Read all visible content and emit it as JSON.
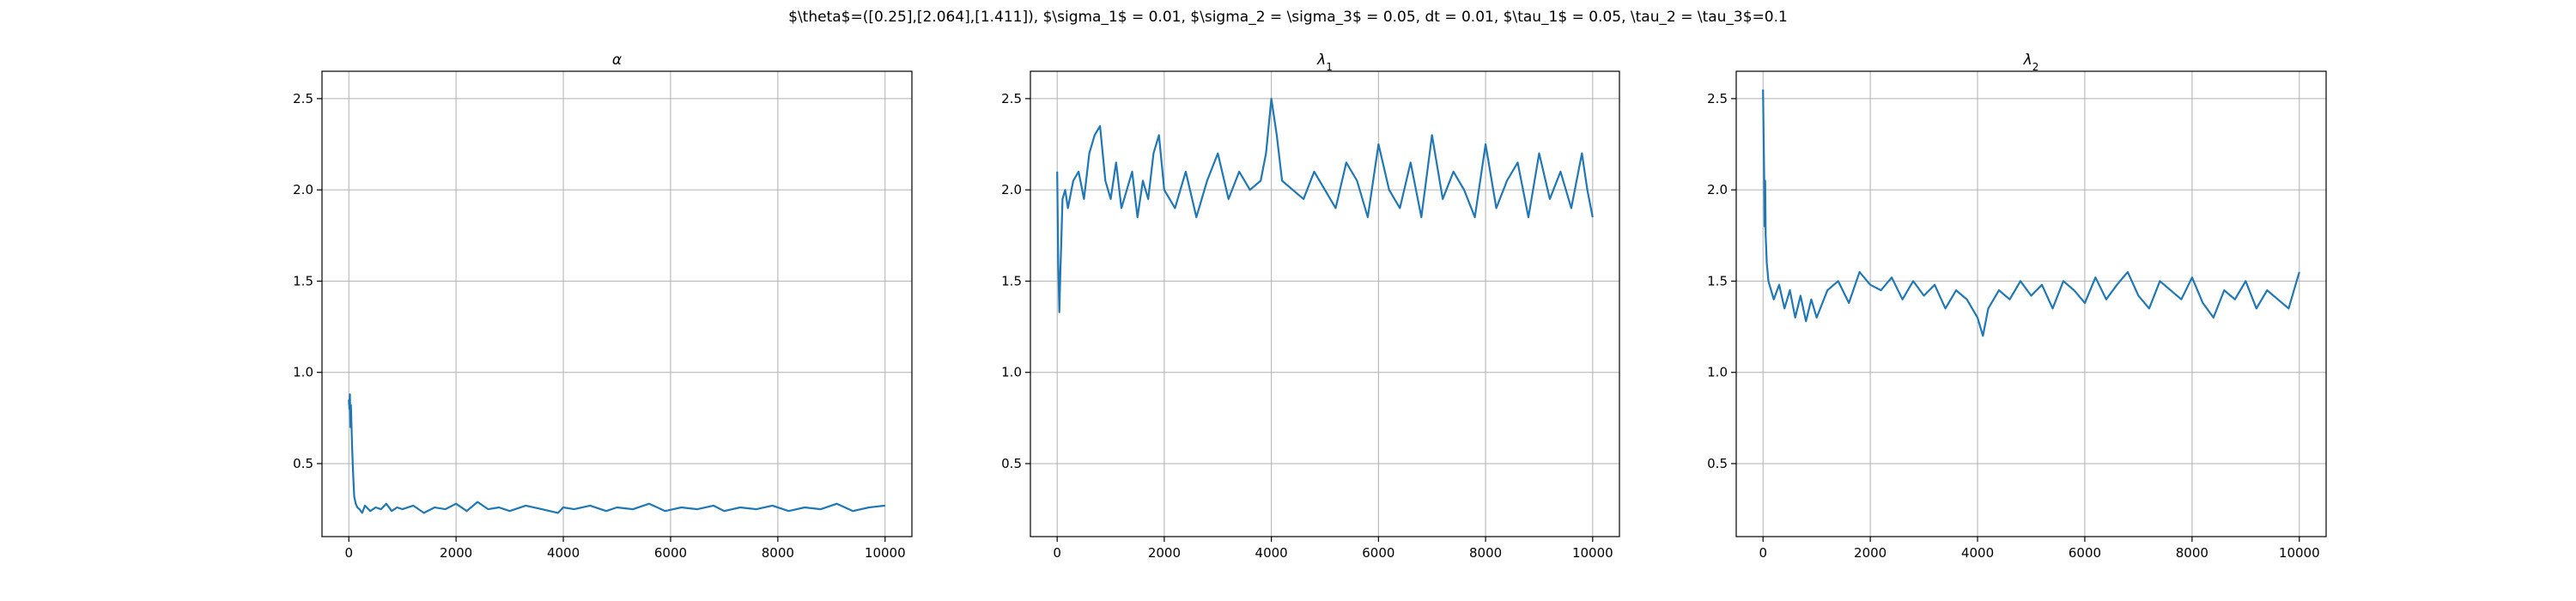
{
  "figure": {
    "suptitle": "$\\theta$=([0.25],[2.064],[1.411]), $\\sigma_1$ = 0.01, $\\sigma_2 = \\sigma_3$ = 0.05, dt = 0.01, $\\tau_1$ = 0.05, \\tau_2 = \\tau_3$=0.1"
  },
  "style": {
    "line_color": "#1f77b4",
    "grid_color": "#b0b0b0"
  },
  "chart_data": [
    {
      "type": "line",
      "title": "α",
      "xlim": [
        -500,
        10500
      ],
      "ylim": [
        0.1,
        2.65
      ],
      "xticks": [
        0,
        2000,
        4000,
        6000,
        8000,
        10000
      ],
      "yticks": [
        0.5,
        1.0,
        1.5,
        2.0,
        2.5
      ],
      "xtick_labels": [
        "0",
        "2000",
        "4000",
        "6000",
        "8000",
        "10000"
      ],
      "ytick_labels": [
        "0.5",
        "1.0",
        "1.5",
        "2.0",
        "2.5"
      ],
      "grid": true,
      "series": [
        {
          "x": [
            0,
            10,
            20,
            30,
            40,
            60,
            80,
            100,
            130,
            160,
            200,
            250,
            300,
            400,
            500,
            600,
            700,
            800,
            900,
            1000,
            1200,
            1400,
            1600,
            1800,
            2000,
            2200,
            2400,
            2600,
            2800,
            3000,
            3300,
            3600,
            3900,
            4000,
            4200,
            4500,
            4800,
            5000,
            5300,
            5600,
            5900,
            6200,
            6500,
            6800,
            7000,
            7300,
            7600,
            7900,
            8200,
            8500,
            8800,
            9100,
            9400,
            9700,
            10000
          ],
          "y": [
            0.85,
            0.8,
            0.88,
            0.7,
            0.82,
            0.6,
            0.45,
            0.32,
            0.28,
            0.26,
            0.25,
            0.23,
            0.27,
            0.24,
            0.26,
            0.25,
            0.28,
            0.24,
            0.26,
            0.25,
            0.27,
            0.23,
            0.26,
            0.25,
            0.28,
            0.24,
            0.29,
            0.25,
            0.26,
            0.24,
            0.27,
            0.25,
            0.23,
            0.26,
            0.25,
            0.27,
            0.24,
            0.26,
            0.25,
            0.28,
            0.24,
            0.26,
            0.25,
            0.27,
            0.24,
            0.26,
            0.25,
            0.27,
            0.24,
            0.26,
            0.25,
            0.28,
            0.24,
            0.26,
            0.27
          ]
        }
      ]
    },
    {
      "type": "line",
      "title": "λ",
      "title_subscript": "1",
      "xlim": [
        -500,
        10500
      ],
      "ylim": [
        0.1,
        2.65
      ],
      "xticks": [
        0,
        2000,
        4000,
        6000,
        8000,
        10000
      ],
      "yticks": [
        0.5,
        1.0,
        1.5,
        2.0,
        2.5
      ],
      "xtick_labels": [
        "0",
        "2000",
        "4000",
        "6000",
        "8000",
        "10000"
      ],
      "ytick_labels": [
        "0.5",
        "1.0",
        "1.5",
        "2.0",
        "2.5"
      ],
      "grid": true,
      "series": [
        {
          "x": [
            0,
            20,
            40,
            60,
            80,
            100,
            150,
            200,
            300,
            400,
            500,
            600,
            700,
            800,
            900,
            1000,
            1100,
            1200,
            1300,
            1400,
            1500,
            1600,
            1700,
            1800,
            1900,
            2000,
            2200,
            2400,
            2600,
            2800,
            3000,
            3200,
            3400,
            3600,
            3800,
            3900,
            4000,
            4100,
            4200,
            4400,
            4600,
            4800,
            5000,
            5200,
            5400,
            5600,
            5800,
            6000,
            6200,
            6400,
            6600,
            6800,
            7000,
            7200,
            7400,
            7600,
            7800,
            8000,
            8200,
            8400,
            8600,
            8800,
            9000,
            9200,
            9400,
            9600,
            9800,
            9900,
            10000
          ],
          "y": [
            2.1,
            1.6,
            1.33,
            1.55,
            1.75,
            1.95,
            2.0,
            1.9,
            2.05,
            2.1,
            1.95,
            2.2,
            2.3,
            2.35,
            2.05,
            1.95,
            2.15,
            1.9,
            2.0,
            2.1,
            1.85,
            2.05,
            1.95,
            2.2,
            2.3,
            2.0,
            1.9,
            2.1,
            1.85,
            2.05,
            2.2,
            1.95,
            2.1,
            2.0,
            2.05,
            2.2,
            2.5,
            2.3,
            2.05,
            2.0,
            1.95,
            2.1,
            2.0,
            1.9,
            2.15,
            2.05,
            1.85,
            2.25,
            2.0,
            1.9,
            2.15,
            1.85,
            2.3,
            1.95,
            2.1,
            2.0,
            1.85,
            2.25,
            1.9,
            2.05,
            2.15,
            1.85,
            2.2,
            1.95,
            2.1,
            1.9,
            2.2,
            2.0,
            1.85
          ]
        }
      ]
    },
    {
      "type": "line",
      "title": "λ",
      "title_subscript": "2",
      "xlim": [
        -500,
        10500
      ],
      "ylim": [
        0.1,
        2.65
      ],
      "xticks": [
        0,
        2000,
        4000,
        6000,
        8000,
        10000
      ],
      "yticks": [
        0.5,
        1.0,
        1.5,
        2.0,
        2.5
      ],
      "xtick_labels": [
        "0",
        "2000",
        "4000",
        "6000",
        "8000",
        "10000"
      ],
      "ytick_labels": [
        "0.5",
        "1.0",
        "1.5",
        "2.0",
        "2.5"
      ],
      "grid": true,
      "series": [
        {
          "x": [
            0,
            10,
            20,
            30,
            40,
            50,
            70,
            100,
            150,
            200,
            300,
            400,
            500,
            600,
            700,
            800,
            900,
            1000,
            1200,
            1400,
            1600,
            1800,
            2000,
            2200,
            2400,
            2600,
            2800,
            3000,
            3200,
            3400,
            3600,
            3800,
            4000,
            4100,
            4200,
            4400,
            4600,
            4800,
            5000,
            5200,
            5400,
            5600,
            5800,
            6000,
            6200,
            6400,
            6600,
            6800,
            7000,
            7200,
            7400,
            7600,
            7800,
            8000,
            8200,
            8400,
            8600,
            8800,
            9000,
            9200,
            9400,
            9600,
            9800,
            10000
          ],
          "y": [
            2.55,
            2.3,
            2.1,
            1.8,
            2.05,
            1.75,
            1.6,
            1.5,
            1.45,
            1.4,
            1.48,
            1.35,
            1.45,
            1.3,
            1.42,
            1.28,
            1.4,
            1.3,
            1.45,
            1.5,
            1.38,
            1.55,
            1.48,
            1.45,
            1.52,
            1.4,
            1.5,
            1.42,
            1.48,
            1.35,
            1.45,
            1.4,
            1.3,
            1.2,
            1.35,
            1.45,
            1.4,
            1.5,
            1.42,
            1.48,
            1.35,
            1.5,
            1.45,
            1.38,
            1.52,
            1.4,
            1.48,
            1.55,
            1.42,
            1.35,
            1.5,
            1.45,
            1.4,
            1.52,
            1.38,
            1.3,
            1.45,
            1.4,
            1.5,
            1.35,
            1.45,
            1.4,
            1.35,
            1.55
          ]
        }
      ]
    }
  ]
}
